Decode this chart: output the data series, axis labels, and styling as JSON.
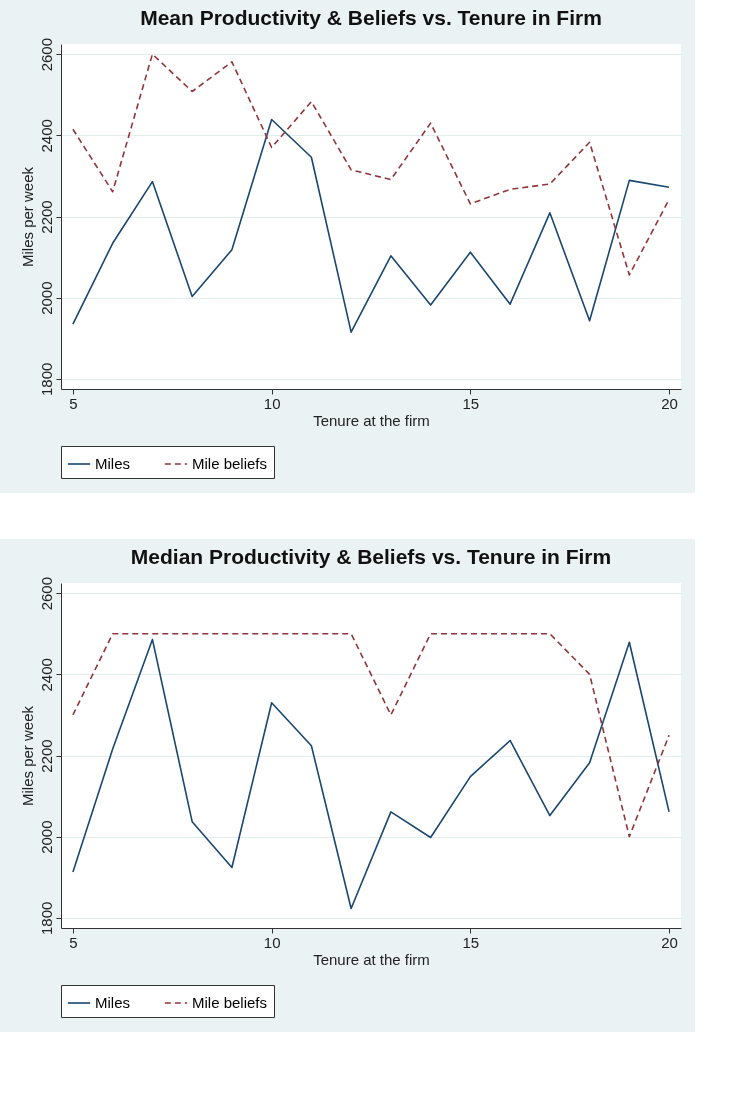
{
  "chart_data": [
    {
      "type": "line",
      "title": "Mean Productivity & Beliefs vs. Tenure in Firm",
      "xlabel": "Tenure at the firm",
      "ylabel": "Miles per week",
      "x": [
        5,
        6,
        7,
        8,
        9,
        10,
        11,
        12,
        13,
        14,
        15,
        16,
        17,
        18,
        19,
        20
      ],
      "series": [
        {
          "name": "Miles",
          "color": "#1a476f",
          "line_style": "solid",
          "values": [
            1935,
            2134,
            2286,
            2003,
            2118,
            2439,
            2346,
            1915,
            2103,
            1982,
            2112,
            1984,
            2209,
            1943,
            2289,
            2272
          ]
        },
        {
          "name": "Mile beliefs",
          "color": "#90353b",
          "line_style": "dashed",
          "values": [
            2415,
            2261,
            2600,
            2508,
            2581,
            2370,
            2483,
            2315,
            2291,
            2430,
            2231,
            2267,
            2280,
            2383,
            2056,
            2242
          ]
        }
      ],
      "xlim": [
        4.7,
        20.3
      ],
      "xticks": [
        5,
        10,
        15,
        20
      ],
      "ylim": [
        1775,
        2625
      ],
      "yticks": [
        1800,
        2000,
        2200,
        2400,
        2600
      ],
      "grid": "y",
      "legend": "bottom",
      "marker": "none"
    },
    {
      "type": "line",
      "title": "Median Productivity & Beliefs vs. Tenure in Firm",
      "xlabel": "Tenure at the firm",
      "ylabel": "Miles per week",
      "x": [
        5,
        6,
        7,
        8,
        9,
        10,
        11,
        12,
        13,
        14,
        15,
        16,
        17,
        18,
        19,
        20
      ],
      "series": [
        {
          "name": "Miles",
          "color": "#1a476f",
          "line_style": "solid",
          "values": [
            1913,
            2216,
            2486,
            2037,
            1924,
            2330,
            2224,
            1823,
            2061,
            1998,
            2148,
            2237,
            2052,
            2182,
            2479,
            2061
          ]
        },
        {
          "name": "Mile beliefs",
          "color": "#90353b",
          "line_style": "dashed",
          "values": [
            2300,
            2500,
            2500,
            2500,
            2500,
            2500,
            2500,
            2500,
            2300,
            2500,
            2500,
            2500,
            2500,
            2400,
            2000,
            2250
          ]
        }
      ],
      "xlim": [
        4.7,
        20.3
      ],
      "xticks": [
        5,
        10,
        15,
        20
      ],
      "ylim": [
        1775,
        2625
      ],
      "yticks": [
        1800,
        2000,
        2200,
        2400,
        2600
      ],
      "grid": "y",
      "legend": "bottom",
      "marker": "none"
    }
  ]
}
